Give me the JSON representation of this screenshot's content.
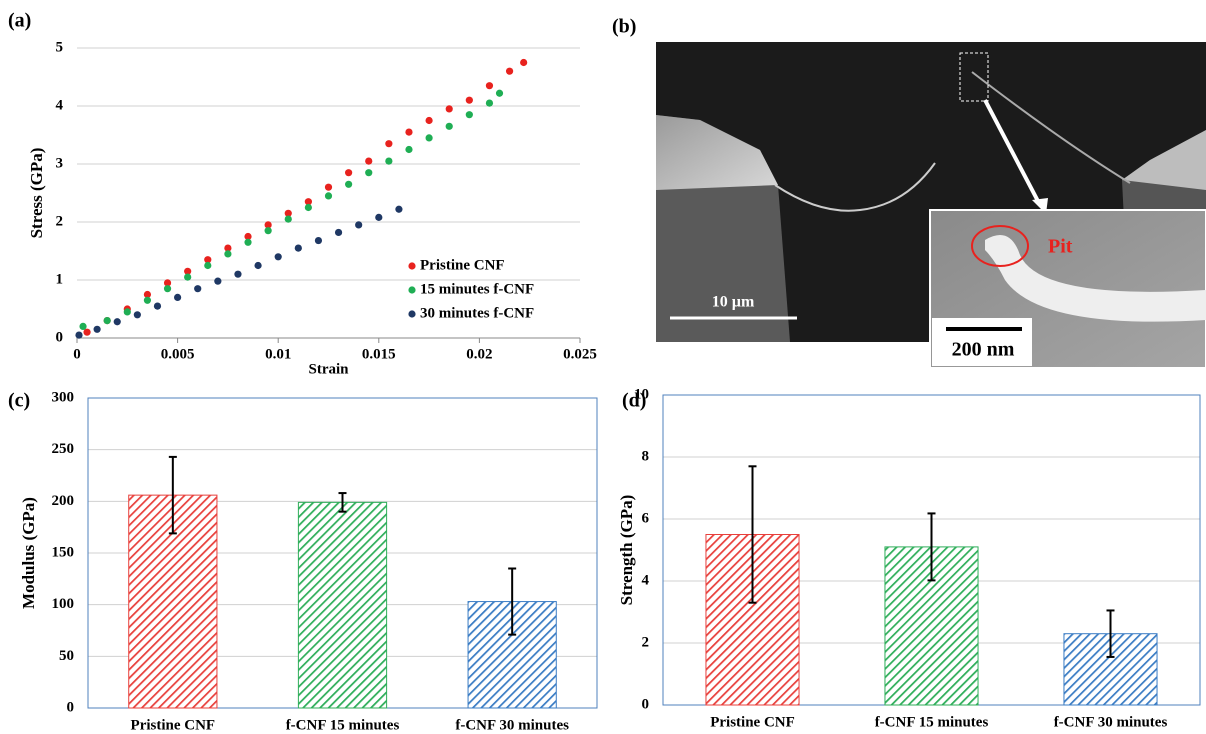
{
  "chart_data": [
    {
      "type": "scatter",
      "panel": "(a)",
      "x_label": "Strain",
      "y_label": "Stress (GPa)",
      "xlim": [
        0,
        0.025
      ],
      "xticks": [
        0,
        0.005,
        0.01,
        0.015,
        0.02,
        0.025
      ],
      "ylim": [
        0,
        5
      ],
      "yticks": [
        0,
        1,
        2,
        3,
        4,
        5
      ],
      "grid": true,
      "legend": "lower right",
      "series": [
        {
          "name": "Pristine CNF",
          "color": "#e8221e",
          "x": [
            0.0005,
            0.0015,
            0.0025,
            0.0035,
            0.0045,
            0.0055,
            0.0065,
            0.0075,
            0.0085,
            0.0095,
            0.0105,
            0.0115,
            0.0125,
            0.0135,
            0.0145,
            0.0155,
            0.0165,
            0.0175,
            0.0185,
            0.0195,
            0.0205,
            0.0215,
            0.0222
          ],
          "values": [
            0.1,
            0.3,
            0.5,
            0.75,
            0.95,
            1.15,
            1.35,
            1.55,
            1.75,
            1.95,
            2.15,
            2.35,
            2.6,
            2.85,
            3.05,
            3.35,
            3.55,
            3.75,
            3.95,
            4.1,
            4.35,
            4.6,
            4.75
          ]
        },
        {
          "name": "15 minutes f-CNF",
          "color": "#1fae54",
          "x": [
            0.0003,
            0.0015,
            0.0025,
            0.0035,
            0.0045,
            0.0055,
            0.0065,
            0.0075,
            0.0085,
            0.0095,
            0.0105,
            0.0115,
            0.0125,
            0.0135,
            0.0145,
            0.0155,
            0.0165,
            0.0175,
            0.0185,
            0.0195,
            0.0205,
            0.021
          ],
          "values": [
            0.2,
            0.3,
            0.45,
            0.65,
            0.85,
            1.05,
            1.25,
            1.45,
            1.65,
            1.85,
            2.05,
            2.25,
            2.45,
            2.65,
            2.85,
            3.05,
            3.25,
            3.45,
            3.65,
            3.85,
            4.05,
            4.22
          ]
        },
        {
          "name": "30 minutes f-CNF",
          "color": "#1f3864",
          "x": [
            0.0001,
            0.001,
            0.002,
            0.003,
            0.004,
            0.005,
            0.006,
            0.007,
            0.008,
            0.009,
            0.01,
            0.011,
            0.012,
            0.013,
            0.014,
            0.015,
            0.016
          ],
          "values": [
            0.05,
            0.15,
            0.28,
            0.4,
            0.55,
            0.7,
            0.85,
            0.98,
            1.1,
            1.25,
            1.4,
            1.55,
            1.68,
            1.82,
            1.95,
            2.08,
            2.22
          ]
        }
      ]
    },
    {
      "type": "bar",
      "panel": "(c)",
      "y_label": "Modulus (GPa)",
      "categories": [
        "Pristine CNF",
        "f-CNF 15 minutes",
        "f-CNF 30 minutes"
      ],
      "values": [
        206,
        199,
        103
      ],
      "errors": [
        37,
        9,
        32
      ],
      "colors": [
        "#e8403c",
        "#2fae5a",
        "#3a7cc4"
      ],
      "ylim": [
        0,
        300
      ],
      "yticks": [
        0,
        50,
        100,
        150,
        200,
        250,
        300
      ],
      "grid": true
    },
    {
      "type": "bar",
      "panel": "(d)",
      "y_label": "Strength (GPa)",
      "categories": [
        "Pristine CNF",
        "f-CNF 15 minutes",
        "f-CNF 30 minutes"
      ],
      "values": [
        5.5,
        5.1,
        2.3
      ],
      "errors": [
        2.2,
        1.08,
        0.75
      ],
      "colors": [
        "#e8403c",
        "#2fae5a",
        "#3a7cc4"
      ],
      "ylim": [
        0,
        10
      ],
      "yticks": [
        0,
        2,
        4,
        6,
        8,
        10
      ],
      "grid": true
    }
  ],
  "image": {
    "panel": "(b)",
    "scale_bar": "10 µm",
    "inset_scale_bar": "200 nm",
    "annotation": "Pit"
  }
}
